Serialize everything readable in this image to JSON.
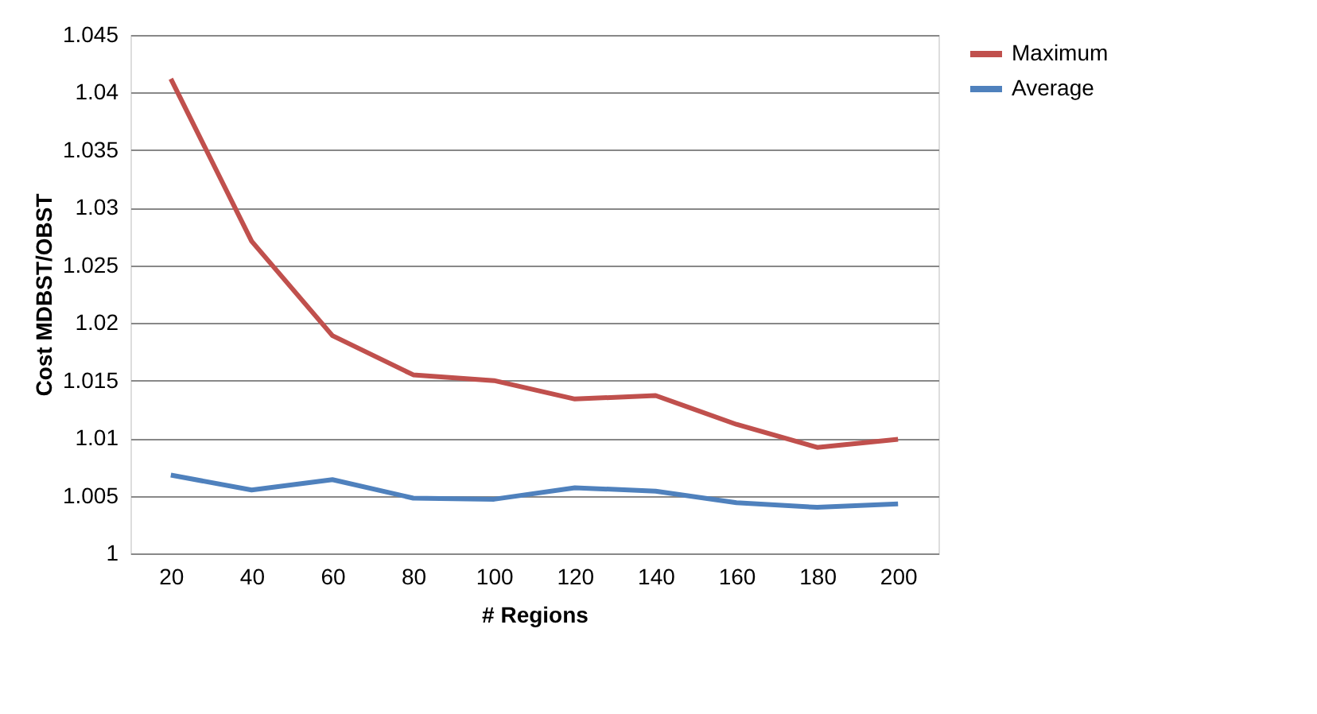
{
  "chart_data": {
    "type": "line",
    "xlabel": "# Regions",
    "ylabel": "Cost MDBST/OBST",
    "categories": [
      "20",
      "40",
      "60",
      "80",
      "100",
      "120",
      "140",
      "160",
      "180",
      "200"
    ],
    "series": [
      {
        "name": "Maximum",
        "color": "#c0504d",
        "values": [
          1.0412,
          1.0271,
          1.0189,
          1.0155,
          1.015,
          1.0134,
          1.0137,
          1.0112,
          1.0092,
          1.0099
        ]
      },
      {
        "name": "Average",
        "color": "#4f81bd",
        "values": [
          1.0068,
          1.0055,
          1.0064,
          1.0048,
          1.0047,
          1.0057,
          1.0054,
          1.0044,
          1.004,
          1.0043
        ]
      }
    ],
    "ylim": [
      1,
      1.045
    ],
    "yticks": [
      1,
      1.005,
      1.01,
      1.015,
      1.02,
      1.025,
      1.03,
      1.035,
      1.04,
      1.045
    ],
    "grid": "y",
    "legend": "right",
    "marker": "none",
    "line_style": "solid"
  }
}
